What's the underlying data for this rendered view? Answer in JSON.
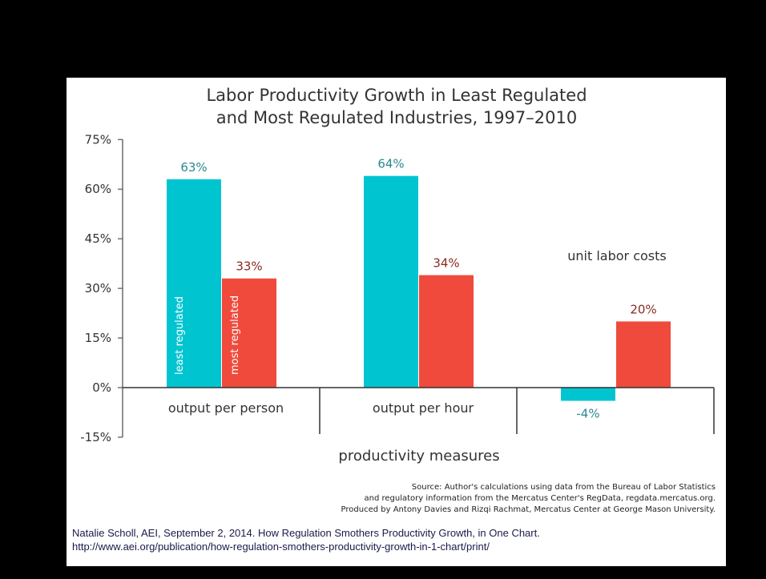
{
  "chart_data": {
    "type": "bar",
    "title": [
      "Labor Productivity Growth in Least Regulated",
      "and Most Regulated Industries, 1997–2010"
    ],
    "xlabel": "productivity measures",
    "ylabel": "",
    "categories": [
      "output per person",
      "output per hour",
      ""
    ],
    "series": [
      {
        "name": "least regulated",
        "values": [
          63,
          64,
          -4
        ],
        "labels": [
          "63%",
          "64%",
          "-4%"
        ],
        "color": "#00c5d0",
        "label_color": "#2a8a8f"
      },
      {
        "name": "most regulated",
        "values": [
          33,
          34,
          20
        ],
        "labels": [
          "33%",
          "34%",
          "20%"
        ],
        "color": "#f04a3c",
        "label_color": "#8a2a22"
      }
    ],
    "ylim": [
      -15,
      75
    ],
    "yticks": [
      75,
      60,
      45,
      30,
      15,
      0,
      -15
    ],
    "ytick_labels": [
      "75%",
      "60%",
      "45%",
      "30%",
      "15%",
      "0%",
      "-15%"
    ],
    "grid": false,
    "legend": "none",
    "annotations": [
      "unit labor costs"
    ],
    "source": [
      "Source: Author's calculations using data from the Bureau of Labor Statistics",
      "and regulatory information from the Mercatus Center's RegData, regdata.mercatus.org.",
      "Produced by Antony Davies and Rizqi Rachmat, Mercatus Center at George Mason University."
    ]
  },
  "citation": [
    "Natalie Scholl, AEI, September  2, 2014. How Regulation Smothers Productivity  Growth, in One Chart.",
    "http://www.aei.org/publication/how-regulation-smothers-productivity-growth-in-1-chart/print/"
  ]
}
